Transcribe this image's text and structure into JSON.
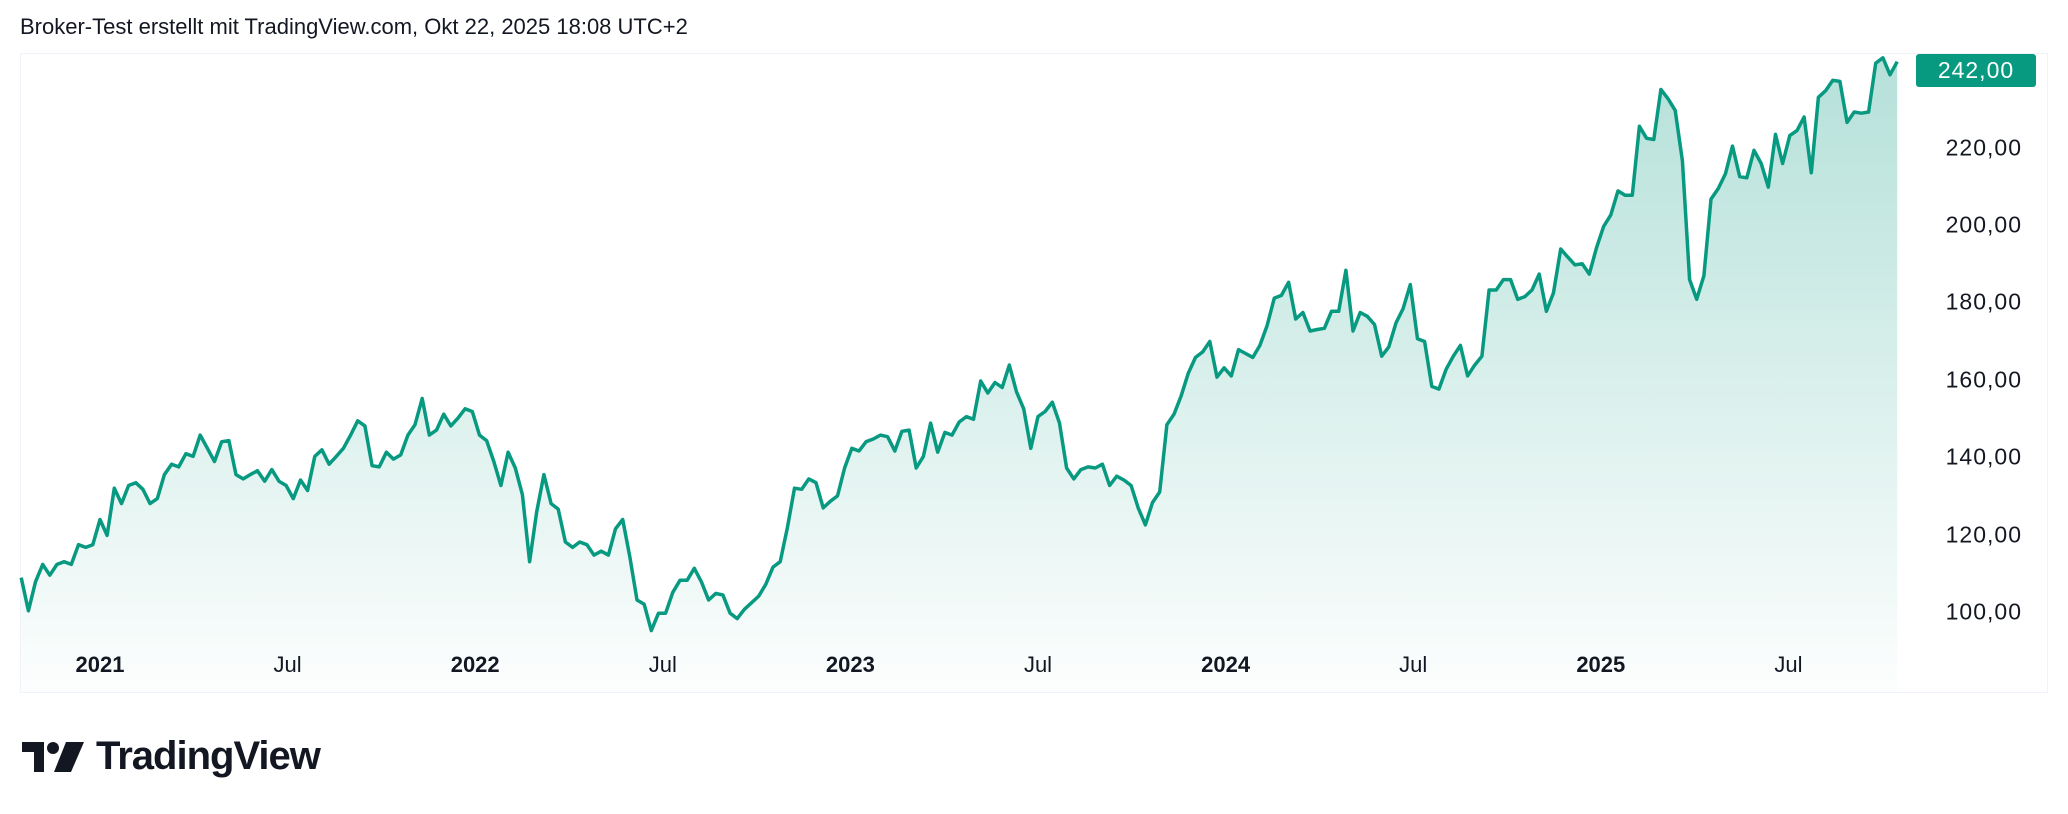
{
  "header": {
    "title": "Broker-Test erstellt mit TradingView.com, Okt 22, 2025 18:08 UTC+2"
  },
  "brand": {
    "logo_text": "TradingView"
  },
  "colors": {
    "line": "#089981",
    "badge": "#089981",
    "text": "#131722"
  },
  "chart_data": {
    "type": "area",
    "title": "Broker-Test",
    "xlabel": "",
    "ylabel": "",
    "x_range_decimal_year": [
      2020.79,
      2025.79
    ],
    "ylim": [
      94,
      246
    ],
    "grid": false,
    "last_value_label": "242,00",
    "y_ticks": [
      {
        "value": 100,
        "label": "100,00"
      },
      {
        "value": 120,
        "label": "120,00"
      },
      {
        "value": 140,
        "label": "140,00"
      },
      {
        "value": 160,
        "label": "160,00"
      },
      {
        "value": 180,
        "label": "180,00"
      },
      {
        "value": 200,
        "label": "200,00"
      },
      {
        "value": 220,
        "label": "220,00"
      }
    ],
    "x_ticks": [
      {
        "value": 2021.0,
        "label": "2021",
        "year": true
      },
      {
        "value": 2021.5,
        "label": "Jul",
        "year": false
      },
      {
        "value": 2022.0,
        "label": "2022",
        "year": true
      },
      {
        "value": 2022.5,
        "label": "Jul",
        "year": false
      },
      {
        "value": 2023.0,
        "label": "2023",
        "year": true
      },
      {
        "value": 2023.5,
        "label": "Jul",
        "year": false
      },
      {
        "value": 2024.0,
        "label": "2024",
        "year": true
      },
      {
        "value": 2024.5,
        "label": "Jul",
        "year": false
      },
      {
        "value": 2025.0,
        "label": "2025",
        "year": true
      },
      {
        "value": 2025.5,
        "label": "Jul",
        "year": false
      }
    ],
    "values": [
      108.9,
      100.3,
      107.8,
      112.3,
      109.5,
      112.3,
      113.0,
      112.3,
      117.4,
      116.7,
      117.4,
      123.9,
      119.8,
      132.0,
      128.0,
      132.7,
      133.4,
      131.7,
      128.0,
      129.3,
      135.5,
      138.2,
      137.5,
      140.9,
      140.2,
      145.7,
      142.3,
      138.9,
      144.0,
      144.3,
      135.5,
      134.4,
      135.5,
      136.5,
      133.8,
      136.8,
      133.8,
      132.7,
      129.3,
      134.1,
      131.4,
      140.2,
      141.9,
      138.2,
      140.2,
      142.3,
      145.7,
      149.4,
      148.1,
      137.8,
      137.5,
      141.3,
      139.5,
      140.6,
      145.7,
      148.4,
      155.2,
      145.7,
      147.0,
      151.1,
      148.1,
      150.1,
      152.5,
      151.8,
      145.7,
      144.3,
      138.9,
      132.7,
      141.3,
      137.2,
      130.3,
      113.0,
      125.9,
      135.5,
      128.0,
      126.6,
      118.1,
      116.7,
      118.1,
      117.4,
      114.7,
      115.7,
      114.7,
      121.5,
      123.9,
      114.3,
      103.1,
      102.0,
      95.2,
      99.7,
      99.7,
      105.1,
      108.2,
      108.2,
      111.3,
      107.8,
      103.1,
      104.8,
      104.4,
      99.7,
      98.3,
      100.7,
      102.4,
      104.1,
      107.2,
      111.6,
      113.0,
      121.8,
      132.0,
      131.7,
      134.4,
      133.4,
      126.9,
      128.6,
      130.0,
      137.2,
      142.3,
      141.6,
      144.0,
      144.7,
      145.7,
      145.3,
      141.6,
      146.7,
      147.0,
      137.2,
      140.2,
      148.8,
      141.3,
      146.4,
      145.7,
      149.1,
      150.5,
      149.8,
      159.7,
      156.6,
      159.3,
      158.0,
      163.8,
      156.9,
      152.5,
      142.3,
      150.5,
      151.8,
      154.2,
      148.8,
      137.2,
      134.4,
      136.8,
      137.5,
      137.2,
      138.2,
      132.7,
      135.1,
      134.1,
      132.7,
      126.9,
      122.5,
      128.3,
      131.0,
      148.4,
      151.1,
      155.9,
      161.7,
      165.8,
      167.2,
      169.9,
      160.7,
      163.1,
      161.0,
      167.8,
      166.8,
      165.8,
      168.9,
      174.0,
      181.1,
      181.8,
      185.2,
      175.7,
      177.4,
      172.6,
      173.0,
      173.3,
      177.7,
      177.7,
      188.3,
      172.6,
      177.4,
      176.4,
      174.3,
      166.1,
      168.5,
      174.7,
      178.4,
      184.6,
      170.6,
      169.9,
      158.3,
      157.6,
      162.7,
      166.1,
      168.9,
      161.0,
      163.8,
      166.1,
      183.2,
      183.2,
      185.9,
      185.9,
      180.8,
      181.5,
      183.2,
      187.3,
      177.7,
      182.5,
      193.8,
      191.7,
      189.7,
      190.0,
      187.3,
      194.1,
      199.6,
      202.6,
      208.8,
      207.7,
      207.7,
      225.5,
      222.4,
      222.1,
      235.0,
      232.6,
      229.6,
      216.6,
      185.9,
      180.8,
      186.9,
      206.7,
      209.4,
      213.2,
      220.4,
      212.5,
      212.2,
      219.3,
      215.9,
      209.8,
      223.4,
      215.9,
      223.1,
      224.4,
      227.9,
      213.5,
      233.0,
      234.7,
      237.4,
      237.1,
      226.5,
      229.2,
      228.9,
      229.2,
      241.8,
      243.2,
      238.8,
      242.2
    ]
  }
}
